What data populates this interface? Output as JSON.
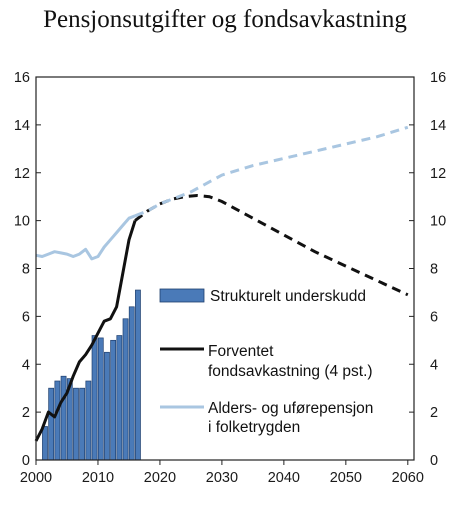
{
  "chart_data": {
    "type": "bar+line",
    "title": "Pensjonsutgifter og fondsavkastning",
    "xlabel": "",
    "ylabel": "",
    "xlim": [
      2000,
      2061
    ],
    "ylim": [
      0,
      16
    ],
    "x_ticks": [
      "2000",
      "2010",
      "2020",
      "2030",
      "2040",
      "2050",
      "2060"
    ],
    "y_ticks": [
      "0",
      "2",
      "4",
      "6",
      "8",
      "10",
      "12",
      "14",
      "16"
    ],
    "grid": false,
    "legend_position": "center-right",
    "series": [
      {
        "name": "Strukturelt underskudd",
        "type": "bar",
        "color": "#4a7ab8",
        "x": [
          2001,
          2002,
          2003,
          2004,
          2005,
          2006,
          2007,
          2008,
          2009,
          2010,
          2011,
          2012,
          2013,
          2014,
          2015,
          2016
        ],
        "values": [
          1.4,
          3.0,
          3.3,
          3.5,
          3.4,
          3.0,
          3.0,
          3.3,
          5.2,
          5.1,
          4.5,
          5.0,
          5.2,
          5.9,
          6.4,
          7.1
        ]
      },
      {
        "name": "Forventet fondsavkastning (4 pst.)",
        "type": "line",
        "color": "#111111",
        "solid_until": 2016,
        "x": [
          2000,
          2001,
          2002,
          2003,
          2004,
          2005,
          2006,
          2007,
          2008,
          2009,
          2010,
          2011,
          2012,
          2013,
          2014,
          2015,
          2016,
          2018,
          2020,
          2022,
          2024,
          2026,
          2028,
          2030,
          2035,
          2040,
          2045,
          2050,
          2055,
          2060
        ],
        "values": [
          0.8,
          1.3,
          2.0,
          1.8,
          2.4,
          2.8,
          3.5,
          4.1,
          4.4,
          4.8,
          5.3,
          5.8,
          5.9,
          6.4,
          7.8,
          9.2,
          10.0,
          10.4,
          10.7,
          10.9,
          11.0,
          11.05,
          11.0,
          10.8,
          10.1,
          9.4,
          8.7,
          8.1,
          7.5,
          6.9
        ]
      },
      {
        "name": "Alders- og uførepensjon i folketrygden",
        "type": "line",
        "color": "#a9c6e1",
        "solid_until": 2016,
        "x": [
          2000,
          2001,
          2002,
          2003,
          2004,
          2005,
          2006,
          2007,
          2008,
          2009,
          2010,
          2011,
          2012,
          2013,
          2014,
          2015,
          2016,
          2018,
          2020,
          2025,
          2030,
          2035,
          2040,
          2045,
          2050,
          2055,
          2060
        ],
        "values": [
          8.55,
          8.5,
          8.6,
          8.7,
          8.65,
          8.6,
          8.5,
          8.6,
          8.8,
          8.4,
          8.5,
          8.9,
          9.2,
          9.5,
          9.8,
          10.1,
          10.2,
          10.4,
          10.7,
          11.2,
          11.9,
          12.3,
          12.6,
          12.9,
          13.2,
          13.5,
          13.9
        ]
      }
    ],
    "legend_labels": {
      "bars": "Strukturelt underskudd",
      "fund_line_1": "Forventet",
      "fund_line_2": "fondsavkastning (4 pst.)",
      "pension_line_1": "Alders- og uførepensjon",
      "pension_line_2": "i  folketrygden"
    }
  }
}
